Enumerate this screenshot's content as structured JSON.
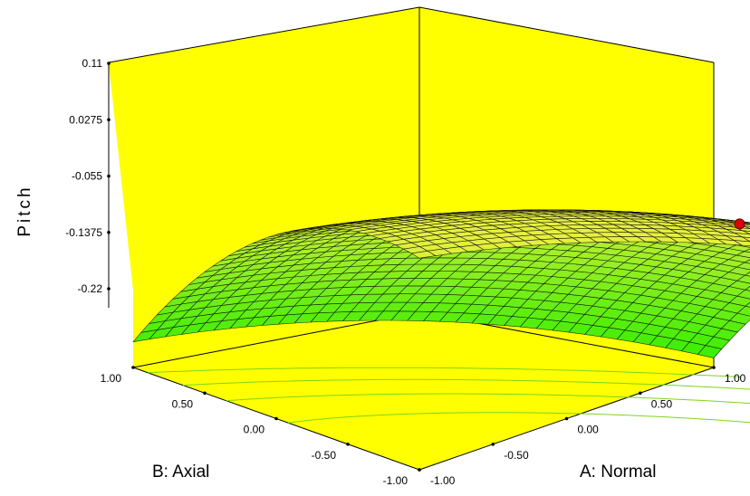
{
  "chart_data": {
    "type": "surface3d",
    "zlabel": "Pitch",
    "xlabel": "A: Normal",
    "ylabel": "B: Axial",
    "z_ticks": [
      "0.11",
      "0.0275",
      "-0.055",
      "-0.1375",
      "-0.22"
    ],
    "a_ticks": [
      "-1.00",
      "-0.50",
      "0.00",
      "0.50",
      "1.00"
    ],
    "b_ticks": [
      "1.00",
      "0.50",
      "0.00",
      "-0.50",
      "-1.00"
    ],
    "zlim": [
      -0.22,
      0.11
    ],
    "alim": [
      -1,
      1
    ],
    "blim": [
      -1,
      1
    ],
    "surface_samples": [
      {
        "a": -1,
        "b": 1,
        "pitch": -0.22
      },
      {
        "a": -1,
        "b": -1,
        "pitch": 0.104
      },
      {
        "a": 0,
        "b": -1,
        "pitch": 0.11
      },
      {
        "a": 1,
        "b": -1,
        "pitch": 0.02
      },
      {
        "a": 1,
        "b": 1,
        "pitch": -0.18
      }
    ],
    "design_point": {
      "a": 0.3,
      "b": -0.6,
      "pitch": 0.11
    },
    "colors": {
      "walls": "#ffff00",
      "surface_high": "#e5ef40",
      "surface_low": "#2fee00",
      "point": "#e00000",
      "contours": "#7dd51a"
    }
  }
}
